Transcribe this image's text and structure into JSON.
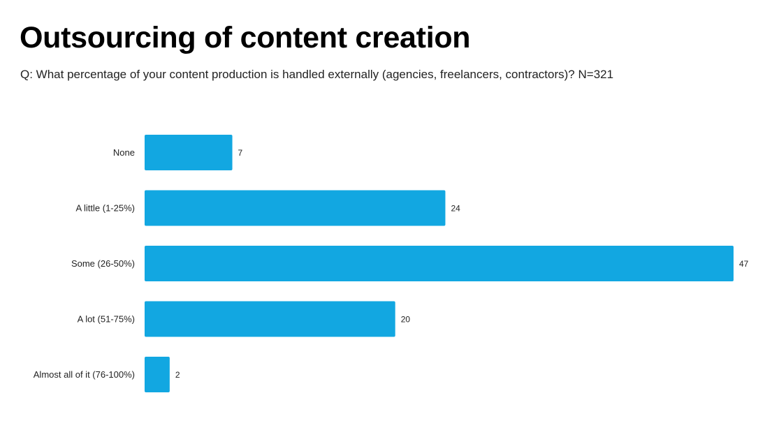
{
  "title": "Outsourcing of content creation",
  "subtitle": "Q: What percentage of your content production is handled externally (agencies, freelancers, contractors)? N=321",
  "chart_data": {
    "type": "bar",
    "orientation": "horizontal",
    "categories": [
      "None",
      "A little (1-25%)",
      "Some (26-50%)",
      "A lot (51-75%)",
      "Almost all of it (76-100%)"
    ],
    "values": [
      7,
      24,
      47,
      20,
      2
    ],
    "data_labels": [
      "7",
      "24",
      "47",
      "20",
      "2"
    ],
    "xlim": [
      0,
      47
    ],
    "grid": false,
    "legend": "none",
    "bar_color": "#12a7e1"
  }
}
